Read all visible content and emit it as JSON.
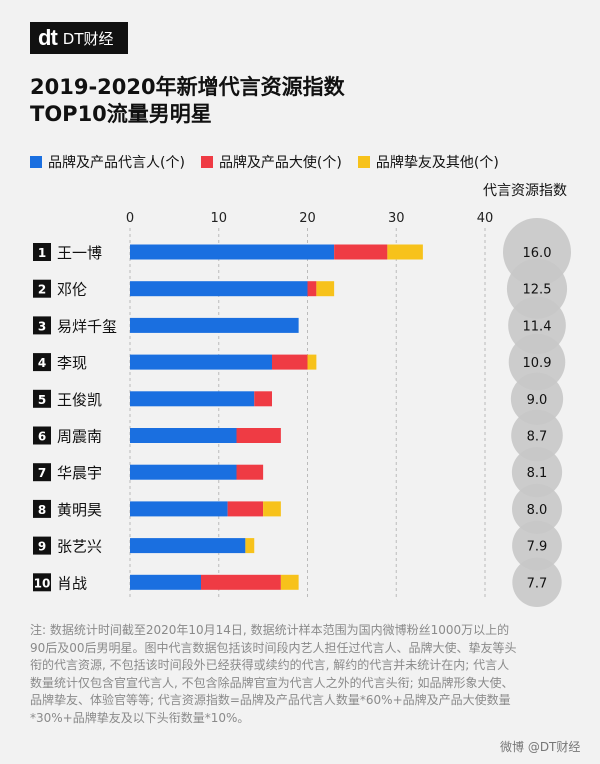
{
  "brand": {
    "logo_mark": "dt",
    "logo_text": "DT财经"
  },
  "title_line1": "2019-2020年新增代言资源指数",
  "title_line2": "TOP10流量男明星",
  "index_header": "代言资源指数",
  "footnote": "注: 数据统计时间截至2020年10月14日, 数据统计样本范围为国内微博粉丝1000万以上的90后及00后男明星。图中代言数据包括该时间段内艺人担任过代言人、品牌大使、挚友等头衔的代言资源, 不包括该时间段外已经获得或续约的代言, 解约的代言并未统计在内; 代言人数量统计仅包含官宣代言人, 不包含除品牌官宣为代言人之外的代言头衔; 如品牌形象大使、品牌挚友、体验官等等; 代言资源指数=品牌及产品代言人数量*60%+品牌及产品大使数量*30%+品牌挚友及以下头衔数量*10%。",
  "watermark_text": "微博 @DT财经",
  "colors": {
    "blue": "#1a6fe0",
    "red": "#ef3b44",
    "yellow": "#f7c21b",
    "circle": "#c8c8c8"
  },
  "chart_data": {
    "type": "bar",
    "orientation": "horizontal",
    "stacked": true,
    "xlim": [
      0,
      40
    ],
    "xticks": [
      0,
      10,
      20,
      30,
      40
    ],
    "grid": true,
    "legend_position": "top",
    "categories": [
      "王一博",
      "邓伦",
      "易烊千玺",
      "李现",
      "王俊凯",
      "周震南",
      "华晨宇",
      "黄明昊",
      "张艺兴",
      "肖战"
    ],
    "ranks": [
      "1",
      "2",
      "3",
      "4",
      "5",
      "6",
      "7",
      "8",
      "9",
      "10"
    ],
    "series": [
      {
        "name": "品牌及产品代言人(个)",
        "color": "#1a6fe0",
        "values": [
          23,
          20,
          19,
          16,
          14,
          12,
          12,
          11,
          13,
          8
        ]
      },
      {
        "name": "品牌及产品大使(个)",
        "color": "#ef3b44",
        "values": [
          6,
          1,
          0,
          4,
          2,
          5,
          3,
          4,
          0,
          9
        ]
      },
      {
        "name": "品牌挚友及其他(个)",
        "color": "#f7c21b",
        "values": [
          4,
          2,
          0,
          1,
          0,
          0,
          0,
          2,
          1,
          2
        ]
      }
    ],
    "index_values": [
      "16.0",
      "12.5",
      "11.4",
      "10.9",
      "9.0",
      "8.7",
      "8.1",
      "8.0",
      "7.9",
      "7.7"
    ],
    "index_numeric": [
      16.0,
      12.5,
      11.4,
      10.9,
      9.0,
      8.7,
      8.1,
      8.0,
      7.9,
      7.7
    ]
  }
}
